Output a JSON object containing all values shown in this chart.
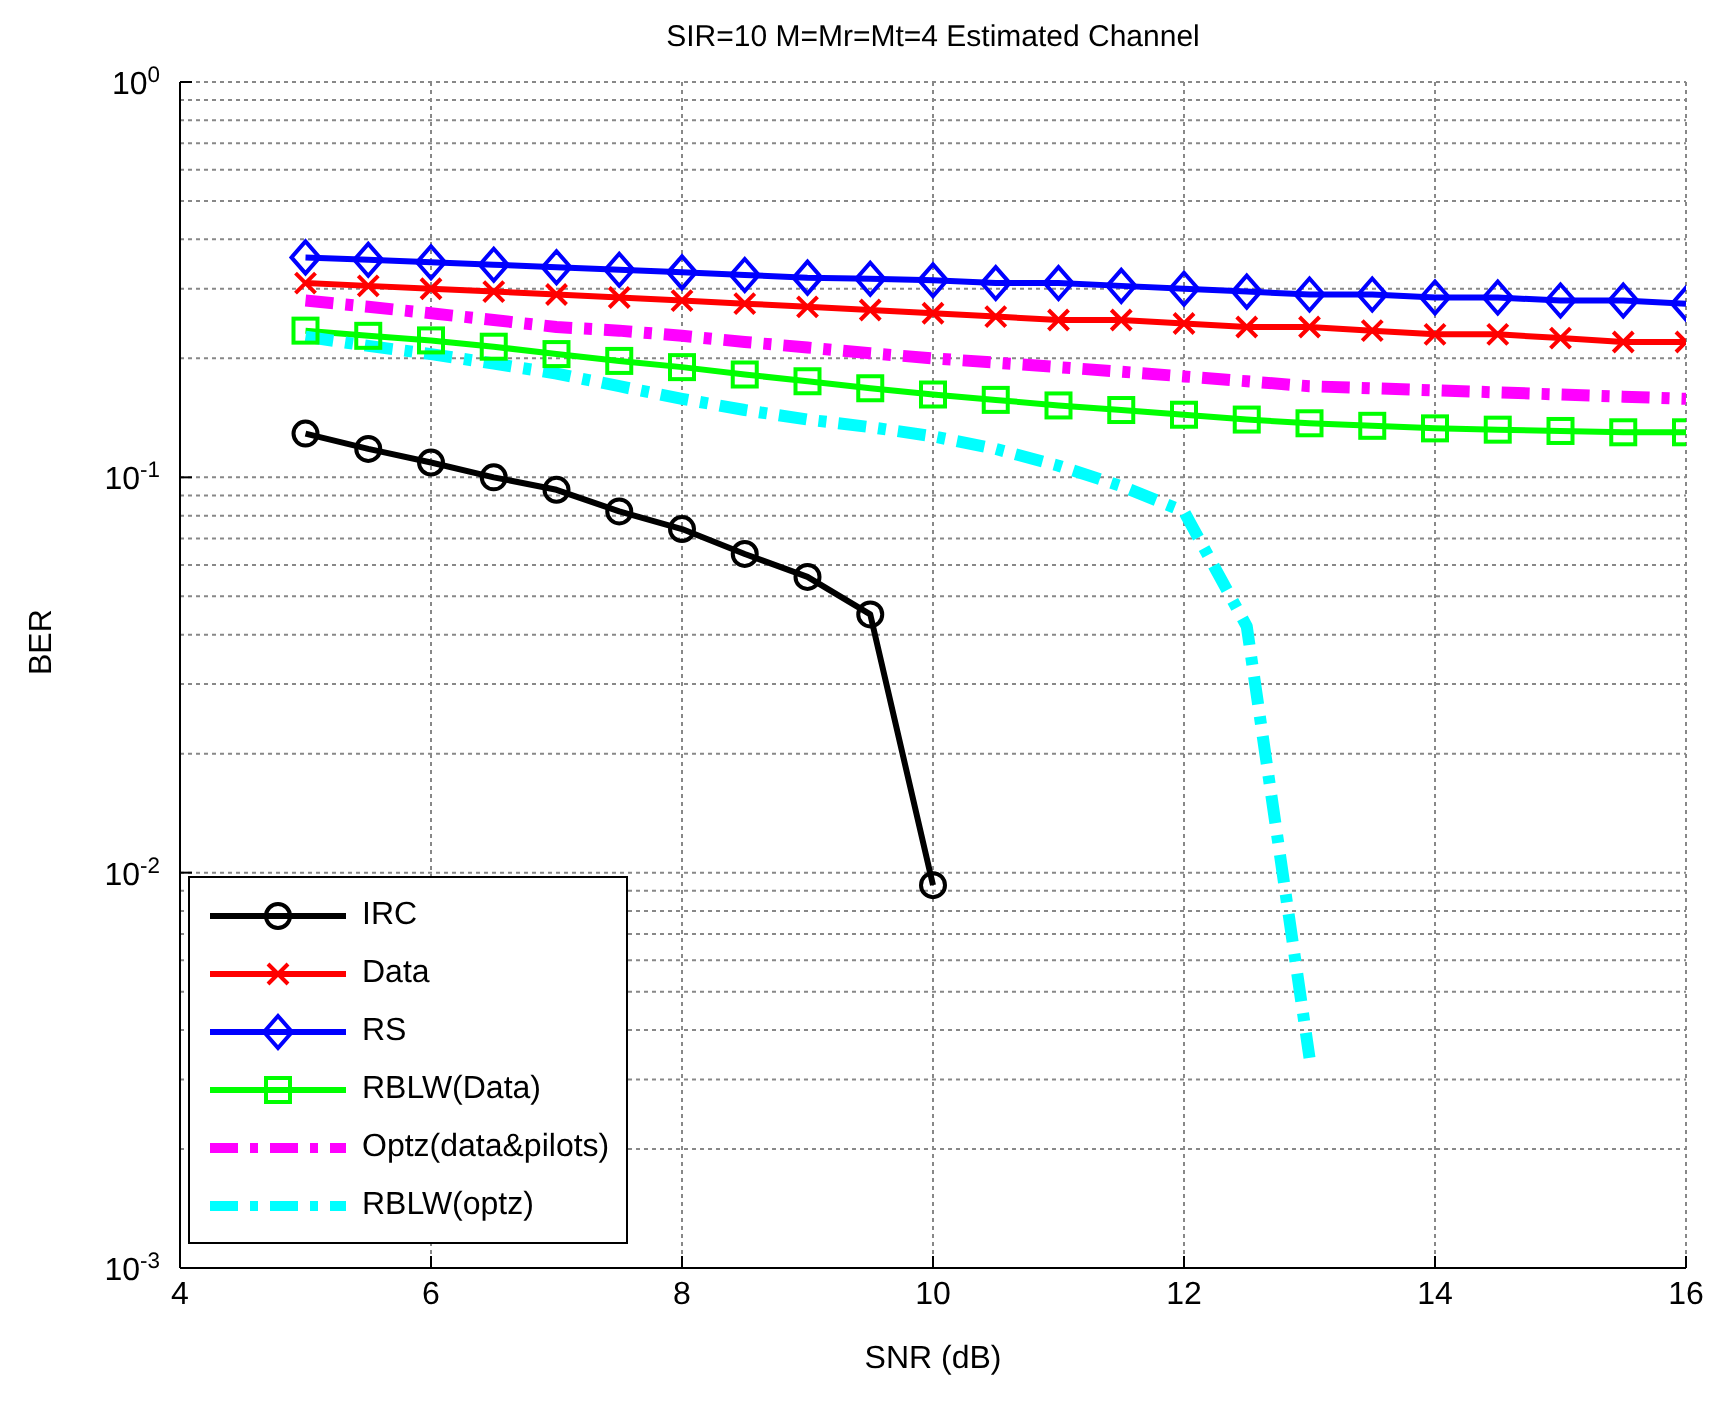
{
  "chart_data": {
    "type": "line",
    "title": "SIR=10 M=Mr=Mt=4 Estimated Channel",
    "xlabel": "SNR (dB)",
    "ylabel": "BER",
    "x": [
      5,
      5.5,
      6,
      6.5,
      7,
      7.5,
      8,
      8.5,
      9,
      9.5,
      10,
      10.5,
      11,
      11.5,
      12,
      12.5,
      13,
      13.5,
      14,
      14.5,
      15,
      15.5,
      16
    ],
    "series": [
      {
        "name": "IRC",
        "color": "#000000",
        "marker": "circle",
        "line_style": "solid",
        "x": [
          5,
          5.5,
          6,
          6.5,
          7,
          7.5,
          8,
          8.5,
          9,
          9.5,
          10
        ],
        "values": [
          0.129,
          0.118,
          0.109,
          0.1,
          0.093,
          0.082,
          0.074,
          0.064,
          0.056,
          0.045,
          0.0093
        ]
      },
      {
        "name": "Data",
        "color": "#ff0000",
        "marker": "cross",
        "line_style": "solid",
        "values": [
          0.31,
          0.305,
          0.3,
          0.295,
          0.29,
          0.285,
          0.28,
          0.275,
          0.27,
          0.265,
          0.26,
          0.255,
          0.25,
          0.25,
          0.245,
          0.24,
          0.24,
          0.235,
          0.23,
          0.23,
          0.225,
          0.22,
          0.22
        ]
      },
      {
        "name": "RS",
        "color": "#0000ff",
        "marker": "diamond",
        "line_style": "solid",
        "values": [
          0.36,
          0.355,
          0.35,
          0.345,
          0.34,
          0.335,
          0.33,
          0.325,
          0.32,
          0.318,
          0.315,
          0.31,
          0.31,
          0.305,
          0.3,
          0.295,
          0.29,
          0.29,
          0.285,
          0.285,
          0.28,
          0.28,
          0.275
        ]
      },
      {
        "name": "RBLW(Data)",
        "color": "#00ff00",
        "marker": "square",
        "line_style": "solid",
        "values": [
          0.235,
          0.228,
          0.222,
          0.214,
          0.205,
          0.197,
          0.19,
          0.182,
          0.175,
          0.168,
          0.162,
          0.157,
          0.152,
          0.148,
          0.144,
          0.14,
          0.137,
          0.135,
          0.133,
          0.132,
          0.131,
          0.13,
          0.13
        ]
      },
      {
        "name": "Optz(data&pilots)",
        "color": "#ff00ff",
        "marker": "none",
        "line_style": "dashdot",
        "values": [
          0.28,
          0.27,
          0.26,
          0.25,
          0.24,
          0.235,
          0.228,
          0.22,
          0.213,
          0.206,
          0.2,
          0.195,
          0.19,
          0.185,
          0.18,
          0.175,
          0.17,
          0.168,
          0.166,
          0.164,
          0.162,
          0.16,
          0.158
        ]
      },
      {
        "name": "RBLW(optz)",
        "color": "#00ffff",
        "marker": "none",
        "line_style": "dashdot",
        "x": [
          5,
          5.5,
          6,
          6.5,
          7,
          7.5,
          8,
          8.5,
          9,
          9.5,
          10,
          10.5,
          11,
          11.5,
          12,
          12.5,
          13
        ],
        "values": [
          0.227,
          0.215,
          0.205,
          0.194,
          0.183,
          0.17,
          0.158,
          0.148,
          0.14,
          0.134,
          0.127,
          0.118,
          0.107,
          0.095,
          0.082,
          0.042,
          0.0034
        ]
      }
    ],
    "xlim": [
      4,
      16
    ],
    "xticks": [
      4,
      6,
      8,
      10,
      12,
      14,
      16
    ],
    "ylim": [
      0.001,
      1
    ],
    "yticks": [
      {
        "value": 0.001,
        "label": "10$^{-3}$"
      },
      {
        "value": 0.01,
        "label": "10$^{-2}$"
      },
      {
        "value": 0.1,
        "label": "10$^{-1}$"
      },
      {
        "value": 1,
        "label": "10$^{0}$"
      }
    ],
    "log": "y",
    "grid": true,
    "legend": "bottom left"
  }
}
